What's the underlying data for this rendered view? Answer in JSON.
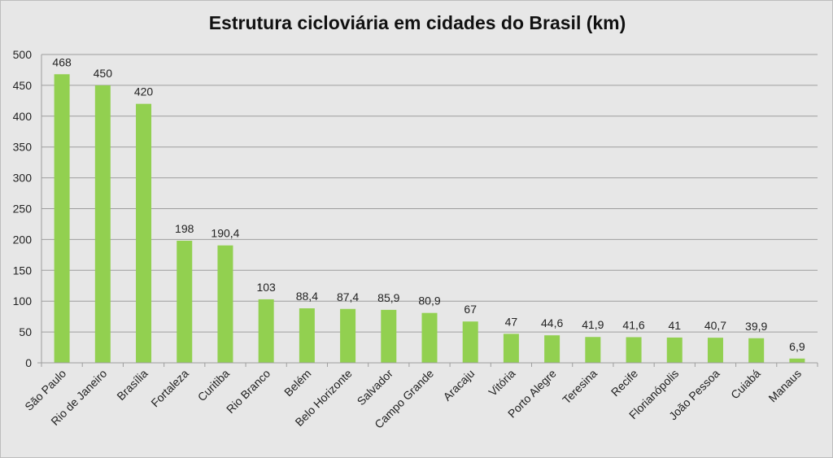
{
  "chart_data": {
    "type": "bar",
    "title": "Estrutura cicloviária em cidades do Brasil (km)",
    "categories": [
      "São Paulo",
      "Rio de Janeiro",
      "Brasília",
      "Fortaleza",
      "Curitiba",
      "Rio Branco",
      "Belém",
      "Belo Horizonte",
      "Salvador",
      "Campo Grande",
      "Aracaju",
      "Vitória",
      "Porto Alegre",
      "Teresina",
      "Recife",
      "Florianópolis",
      "João Pessoa",
      "Cuiabá",
      "Manaus"
    ],
    "values": [
      468,
      450,
      420,
      198,
      190.4,
      103,
      88.4,
      87.4,
      85.9,
      80.9,
      67,
      47,
      44.6,
      41.9,
      41.6,
      41,
      40.7,
      39.9,
      6.9
    ],
    "data_labels": [
      "468",
      "450",
      "420",
      "198",
      "190,4",
      "103",
      "88,4",
      "87,4",
      "85,9",
      "80,9",
      "67",
      "47",
      "44,6",
      "41,9",
      "41,6",
      "41",
      "40,7",
      "39,9",
      "6,9"
    ],
    "yticks": [
      "0",
      "50",
      "100",
      "150",
      "200",
      "250",
      "300",
      "350",
      "400",
      "450",
      "500"
    ],
    "ylim": [
      0,
      500
    ],
    "grid": true,
    "bar_color": "#92d050",
    "gridline_color": "#9e9e9e",
    "background_color": "#e7e7e7",
    "xlabel": "",
    "ylabel": ""
  }
}
